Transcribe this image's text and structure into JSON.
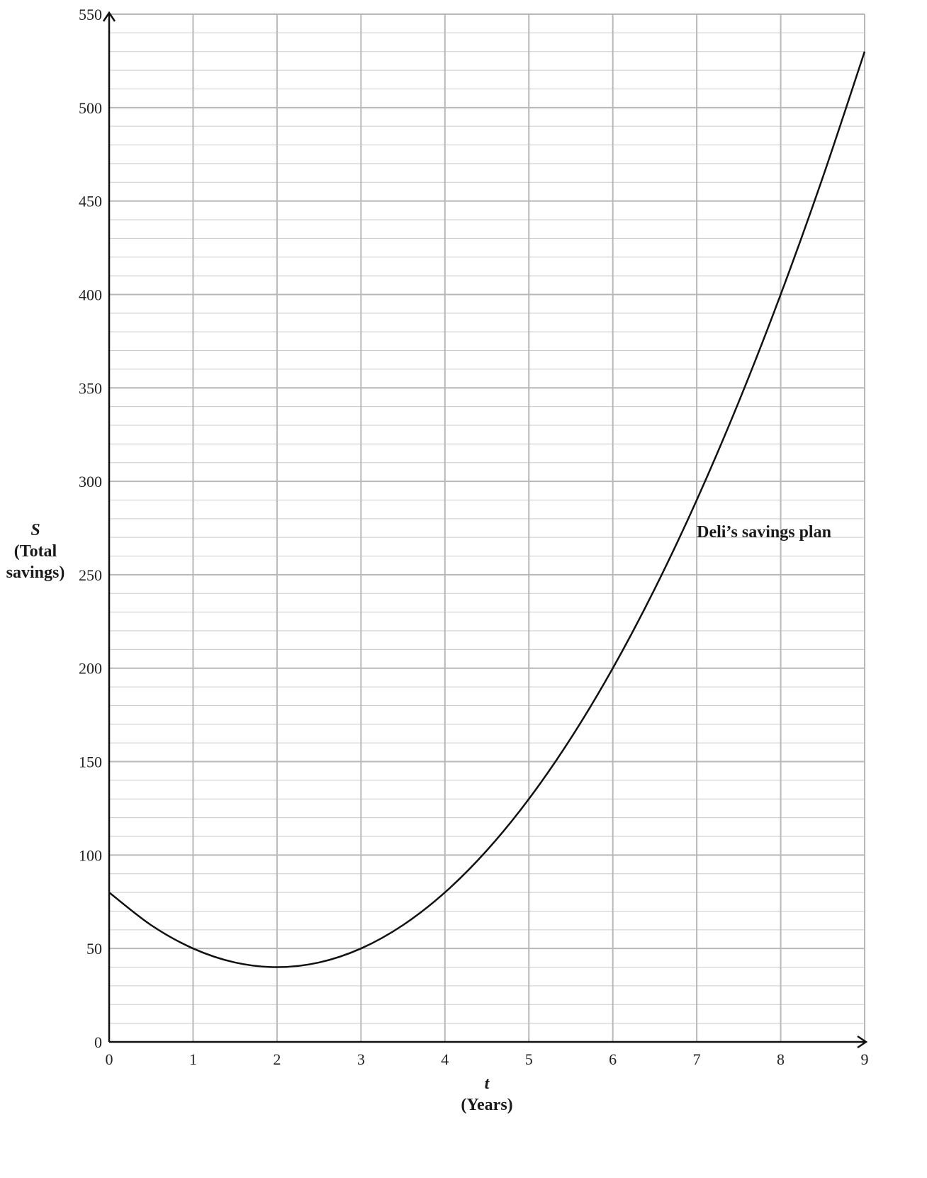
{
  "chart_data": {
    "type": "line",
    "title": "",
    "x_axis": {
      "variable": "t",
      "label": "(Years)",
      "range": [
        0,
        9
      ],
      "ticks": [
        0,
        1,
        2,
        3,
        4,
        5,
        6,
        7,
        8,
        9
      ],
      "tick_labels": [
        "0",
        "1",
        "2",
        "3",
        "4",
        "5",
        "6",
        "7",
        "8",
        "9"
      ],
      "minor_divisions": 1
    },
    "y_axis": {
      "variable": "S",
      "label_lines": [
        "(Total",
        "savings)"
      ],
      "range": [
        0,
        550
      ],
      "ticks": [
        0,
        50,
        100,
        150,
        200,
        250,
        300,
        350,
        400,
        450,
        500,
        550
      ],
      "tick_labels": [
        "0",
        "50",
        "100",
        "150",
        "200",
        "250",
        "300",
        "350",
        "400",
        "450",
        "500",
        "550"
      ],
      "minor_step": 10
    },
    "grid": true,
    "arrows_on_axes": true,
    "series": [
      {
        "points": [
          {
            "x": 0,
            "y": 80
          },
          {
            "x": 0.5,
            "y": 62.5
          },
          {
            "x": 1,
            "y": 50
          },
          {
            "x": 1.5,
            "y": 42.5
          },
          {
            "x": 2,
            "y": 40
          },
          {
            "x": 2.5,
            "y": 42.5
          },
          {
            "x": 3,
            "y": 50
          },
          {
            "x": 3.5,
            "y": 62.5
          },
          {
            "x": 4,
            "y": 80
          },
          {
            "x": 4.5,
            "y": 102.5
          },
          {
            "x": 5,
            "y": 130
          },
          {
            "x": 5.5,
            "y": 162.5
          },
          {
            "x": 6,
            "y": 200
          },
          {
            "x": 6.5,
            "y": 242.5
          },
          {
            "x": 7,
            "y": 290
          },
          {
            "x": 7.5,
            "y": 342.5
          },
          {
            "x": 8,
            "y": 400
          },
          {
            "x": 8.5,
            "y": 462.5
          },
          {
            "x": 9,
            "y": 530
          }
        ],
        "color": "#111111"
      }
    ],
    "annotations": [
      {
        "text": "Deli’s savings plan",
        "x": 7,
        "y": 270
      }
    ],
    "colors": {
      "grid": "#b8b8b8",
      "axis": "#111111",
      "curve": "#111111"
    }
  }
}
